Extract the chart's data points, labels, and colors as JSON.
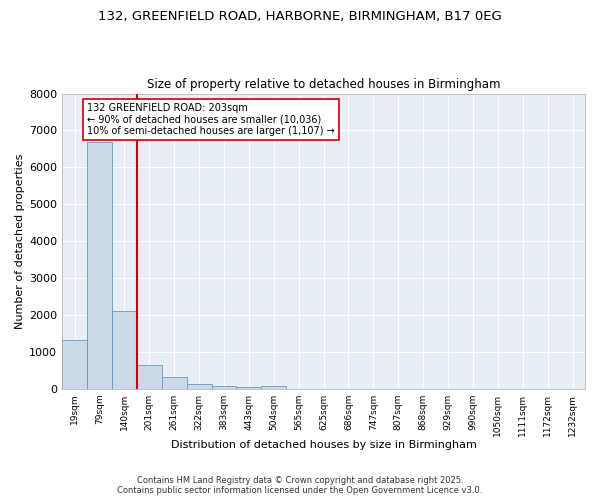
{
  "title_line1": "132, GREENFIELD ROAD, HARBORNE, BIRMINGHAM, B17 0EG",
  "title_line2": "Size of property relative to detached houses in Birmingham",
  "xlabel": "Distribution of detached houses by size in Birmingham",
  "ylabel": "Number of detached properties",
  "bar_color": "#ccd9e8",
  "bar_edge_color": "#6699bb",
  "background_color": "#e8eef6",
  "grid_color": "#ffffff",
  "vline_color": "#cc0000",
  "vline_x": 2.5,
  "annotation_title": "132 GREENFIELD ROAD: 203sqm",
  "annotation_line1": "← 90% of detached houses are smaller (10,036)",
  "annotation_line2": "10% of semi-detached houses are larger (1,107) →",
  "categories": [
    "19sqm",
    "79sqm",
    "140sqm",
    "201sqm",
    "261sqm",
    "322sqm",
    "383sqm",
    "443sqm",
    "504sqm",
    "565sqm",
    "625sqm",
    "686sqm",
    "747sqm",
    "807sqm",
    "868sqm",
    "929sqm",
    "990sqm",
    "1050sqm",
    "1111sqm",
    "1172sqm",
    "1232sqm"
  ],
  "values": [
    1320,
    6700,
    2100,
    650,
    310,
    125,
    80,
    50,
    80,
    0,
    0,
    0,
    0,
    0,
    0,
    0,
    0,
    0,
    0,
    0,
    0
  ],
  "ylim": [
    0,
    8000
  ],
  "yticks": [
    0,
    1000,
    2000,
    3000,
    4000,
    5000,
    6000,
    7000,
    8000
  ],
  "fig_bg": "#ffffff",
  "footer_line1": "Contains HM Land Registry data © Crown copyright and database right 2025.",
  "footer_line2": "Contains public sector information licensed under the Open Government Licence v3.0."
}
